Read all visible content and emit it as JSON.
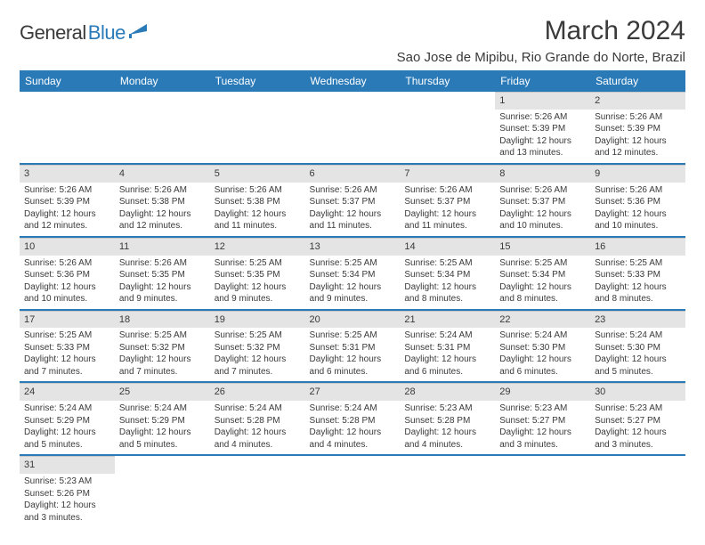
{
  "logo": {
    "text1": "General",
    "text2": "Blue"
  },
  "title": "March 2024",
  "location": "Sao Jose de Mipibu, Rio Grande do Norte, Brazil",
  "colors": {
    "header_bg": "#2a7ab8",
    "header_fg": "#ffffff",
    "daynum_bg": "#e4e4e4",
    "sep": "#2a7ab8",
    "text": "#3a3a3a"
  },
  "weekdays": [
    "Sunday",
    "Monday",
    "Tuesday",
    "Wednesday",
    "Thursday",
    "Friday",
    "Saturday"
  ],
  "weeks": [
    [
      null,
      null,
      null,
      null,
      null,
      {
        "n": "1",
        "sr": "Sunrise: 5:26 AM",
        "ss": "Sunset: 5:39 PM",
        "d1": "Daylight: 12 hours",
        "d2": "and 13 minutes."
      },
      {
        "n": "2",
        "sr": "Sunrise: 5:26 AM",
        "ss": "Sunset: 5:39 PM",
        "d1": "Daylight: 12 hours",
        "d2": "and 12 minutes."
      }
    ],
    [
      {
        "n": "3",
        "sr": "Sunrise: 5:26 AM",
        "ss": "Sunset: 5:39 PM",
        "d1": "Daylight: 12 hours",
        "d2": "and 12 minutes."
      },
      {
        "n": "4",
        "sr": "Sunrise: 5:26 AM",
        "ss": "Sunset: 5:38 PM",
        "d1": "Daylight: 12 hours",
        "d2": "and 12 minutes."
      },
      {
        "n": "5",
        "sr": "Sunrise: 5:26 AM",
        "ss": "Sunset: 5:38 PM",
        "d1": "Daylight: 12 hours",
        "d2": "and 11 minutes."
      },
      {
        "n": "6",
        "sr": "Sunrise: 5:26 AM",
        "ss": "Sunset: 5:37 PM",
        "d1": "Daylight: 12 hours",
        "d2": "and 11 minutes."
      },
      {
        "n": "7",
        "sr": "Sunrise: 5:26 AM",
        "ss": "Sunset: 5:37 PM",
        "d1": "Daylight: 12 hours",
        "d2": "and 11 minutes."
      },
      {
        "n": "8",
        "sr": "Sunrise: 5:26 AM",
        "ss": "Sunset: 5:37 PM",
        "d1": "Daylight: 12 hours",
        "d2": "and 10 minutes."
      },
      {
        "n": "9",
        "sr": "Sunrise: 5:26 AM",
        "ss": "Sunset: 5:36 PM",
        "d1": "Daylight: 12 hours",
        "d2": "and 10 minutes."
      }
    ],
    [
      {
        "n": "10",
        "sr": "Sunrise: 5:26 AM",
        "ss": "Sunset: 5:36 PM",
        "d1": "Daylight: 12 hours",
        "d2": "and 10 minutes."
      },
      {
        "n": "11",
        "sr": "Sunrise: 5:26 AM",
        "ss": "Sunset: 5:35 PM",
        "d1": "Daylight: 12 hours",
        "d2": "and 9 minutes."
      },
      {
        "n": "12",
        "sr": "Sunrise: 5:25 AM",
        "ss": "Sunset: 5:35 PM",
        "d1": "Daylight: 12 hours",
        "d2": "and 9 minutes."
      },
      {
        "n": "13",
        "sr": "Sunrise: 5:25 AM",
        "ss": "Sunset: 5:34 PM",
        "d1": "Daylight: 12 hours",
        "d2": "and 9 minutes."
      },
      {
        "n": "14",
        "sr": "Sunrise: 5:25 AM",
        "ss": "Sunset: 5:34 PM",
        "d1": "Daylight: 12 hours",
        "d2": "and 8 minutes."
      },
      {
        "n": "15",
        "sr": "Sunrise: 5:25 AM",
        "ss": "Sunset: 5:34 PM",
        "d1": "Daylight: 12 hours",
        "d2": "and 8 minutes."
      },
      {
        "n": "16",
        "sr": "Sunrise: 5:25 AM",
        "ss": "Sunset: 5:33 PM",
        "d1": "Daylight: 12 hours",
        "d2": "and 8 minutes."
      }
    ],
    [
      {
        "n": "17",
        "sr": "Sunrise: 5:25 AM",
        "ss": "Sunset: 5:33 PM",
        "d1": "Daylight: 12 hours",
        "d2": "and 7 minutes."
      },
      {
        "n": "18",
        "sr": "Sunrise: 5:25 AM",
        "ss": "Sunset: 5:32 PM",
        "d1": "Daylight: 12 hours",
        "d2": "and 7 minutes."
      },
      {
        "n": "19",
        "sr": "Sunrise: 5:25 AM",
        "ss": "Sunset: 5:32 PM",
        "d1": "Daylight: 12 hours",
        "d2": "and 7 minutes."
      },
      {
        "n": "20",
        "sr": "Sunrise: 5:25 AM",
        "ss": "Sunset: 5:31 PM",
        "d1": "Daylight: 12 hours",
        "d2": "and 6 minutes."
      },
      {
        "n": "21",
        "sr": "Sunrise: 5:24 AM",
        "ss": "Sunset: 5:31 PM",
        "d1": "Daylight: 12 hours",
        "d2": "and 6 minutes."
      },
      {
        "n": "22",
        "sr": "Sunrise: 5:24 AM",
        "ss": "Sunset: 5:30 PM",
        "d1": "Daylight: 12 hours",
        "d2": "and 6 minutes."
      },
      {
        "n": "23",
        "sr": "Sunrise: 5:24 AM",
        "ss": "Sunset: 5:30 PM",
        "d1": "Daylight: 12 hours",
        "d2": "and 5 minutes."
      }
    ],
    [
      {
        "n": "24",
        "sr": "Sunrise: 5:24 AM",
        "ss": "Sunset: 5:29 PM",
        "d1": "Daylight: 12 hours",
        "d2": "and 5 minutes."
      },
      {
        "n": "25",
        "sr": "Sunrise: 5:24 AM",
        "ss": "Sunset: 5:29 PM",
        "d1": "Daylight: 12 hours",
        "d2": "and 5 minutes."
      },
      {
        "n": "26",
        "sr": "Sunrise: 5:24 AM",
        "ss": "Sunset: 5:28 PM",
        "d1": "Daylight: 12 hours",
        "d2": "and 4 minutes."
      },
      {
        "n": "27",
        "sr": "Sunrise: 5:24 AM",
        "ss": "Sunset: 5:28 PM",
        "d1": "Daylight: 12 hours",
        "d2": "and 4 minutes."
      },
      {
        "n": "28",
        "sr": "Sunrise: 5:23 AM",
        "ss": "Sunset: 5:28 PM",
        "d1": "Daylight: 12 hours",
        "d2": "and 4 minutes."
      },
      {
        "n": "29",
        "sr": "Sunrise: 5:23 AM",
        "ss": "Sunset: 5:27 PM",
        "d1": "Daylight: 12 hours",
        "d2": "and 3 minutes."
      },
      {
        "n": "30",
        "sr": "Sunrise: 5:23 AM",
        "ss": "Sunset: 5:27 PM",
        "d1": "Daylight: 12 hours",
        "d2": "and 3 minutes."
      }
    ],
    [
      {
        "n": "31",
        "sr": "Sunrise: 5:23 AM",
        "ss": "Sunset: 5:26 PM",
        "d1": "Daylight: 12 hours",
        "d2": "and 3 minutes."
      },
      null,
      null,
      null,
      null,
      null,
      null
    ]
  ]
}
